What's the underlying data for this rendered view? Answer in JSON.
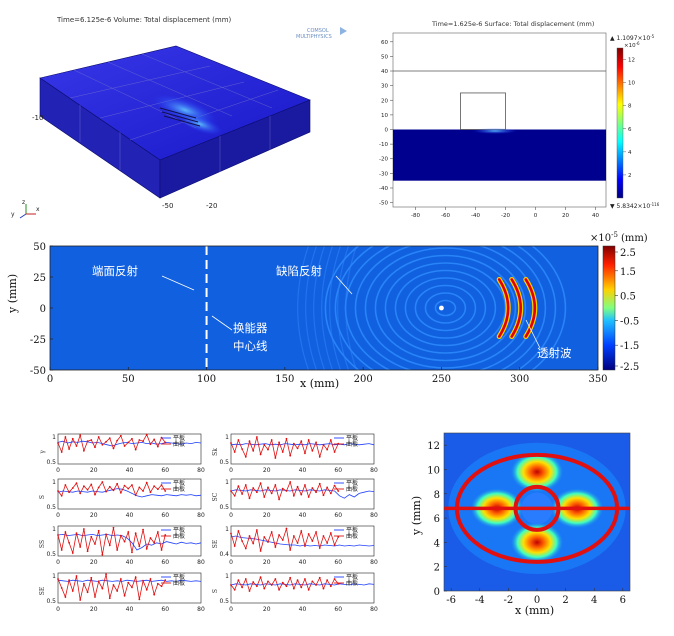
{
  "panel_a": {
    "title": "Time=6.125e-6   Volume: Total displacement (mm)",
    "logo_text_1": "COMSOL",
    "logo_text_2": "MULTIPHYSICS",
    "ticks": [
      "-10",
      "-50",
      "-20"
    ],
    "axes": [
      "y",
      "x",
      "z"
    ]
  },
  "chart_data": [
    {
      "type": "heatmap",
      "title": "Time=1.625e-6   Surface: Total displacement (mm)",
      "yticks": [
        "60",
        "50",
        "40",
        "30",
        "20",
        "10",
        "0",
        "-10",
        "-20",
        "-30",
        "-40",
        "-50"
      ],
      "xticks": [
        "-80",
        "-60",
        "-40",
        "-20",
        "0",
        "20",
        "40"
      ],
      "xlim": [
        -95,
        47
      ],
      "ylim": [
        -53,
        66
      ],
      "colorbar_ticks": [
        "12",
        "10",
        "8",
        "6",
        "4",
        "2"
      ],
      "colorbar_max": "▲ 1.1097×10",
      "colorbar_max_exp": "-5",
      "colorbar_unit": "×10",
      "colorbar_unit_exp": "-6",
      "colorbar_min": "▼ 5.8342×10",
      "colorbar_min_exp": "-116",
      "colorbar_range": [
        0,
        12
      ]
    },
    {
      "type": "heatmap",
      "xlabel": "x (mm)",
      "ylabel": "y (mm)",
      "xticks": [
        "0",
        "50",
        "100",
        "150",
        "200",
        "250",
        "300",
        "350"
      ],
      "yticks": [
        "50",
        "25",
        "0",
        "-25",
        "-50"
      ],
      "xlim": [
        0,
        350
      ],
      "ylim": [
        -50,
        50
      ],
      "colorbar_unit": "×10",
      "colorbar_exp": "-5",
      "colorbar_unit_label": "(mm)",
      "colorbar_ticks": [
        "2.5",
        "1.5",
        "0.5",
        "-0.5",
        "-1.5",
        "-2.5"
      ],
      "colorbar_range": [
        -2.5,
        2.5
      ],
      "annotations": [
        "端面反射",
        "缺陷反射",
        "换能器",
        "中心线",
        "透射波"
      ],
      "transducer_centerline_x": 100,
      "defect": {
        "x": 250,
        "y": 0
      }
    },
    {
      "type": "line",
      "series_names": [
        "平板",
        "曲板"
      ],
      "xticks": [
        "0",
        "20",
        "40",
        "60",
        "80"
      ],
      "xlim": [
        0,
        80
      ],
      "subplots": [
        {
          "ylabel": "γ",
          "yticks": [
            "1",
            "0.5"
          ],
          "ylim": [
            0.5,
            1
          ],
          "red": [
            0.85,
            0.7,
            0.95,
            0.75,
            0.92,
            0.8,
            0.98,
            0.72,
            0.88,
            0.9,
            0.78,
            0.95,
            0.82,
            0.87,
            0.93,
            0.76,
            0.89,
            0.97,
            0.8,
            0.86,
            0.92,
            0.74,
            0.9,
            0.88,
            0.99,
            0.83,
            0.91,
            0.79,
            0.94,
            0.86
          ],
          "blue": [
            0.86,
            0.88,
            0.85,
            0.87,
            0.86,
            0.88,
            0.87,
            0.85,
            0.86,
            0.84,
            0.82,
            0.8,
            0.83,
            0.85,
            0.86,
            0.84,
            0.85,
            0.86,
            0.84,
            0.85,
            0.83,
            0.84,
            0.86,
            0.85,
            0.84,
            0.83,
            0.85,
            0.84,
            0.86,
            0.85
          ]
        },
        {
          "ylabel": "S",
          "yticks": [
            "1",
            "0.5"
          ],
          "ylim": [
            0.5,
            1
          ],
          "red": [
            0.8,
            0.72,
            0.9,
            0.78,
            0.85,
            0.93,
            0.76,
            0.88,
            0.82,
            0.91,
            0.74,
            0.86,
            0.95,
            0.79,
            0.87,
            0.81,
            0.92,
            0.77,
            0.89,
            0.84,
            0.9,
            0.73,
            0.86,
            0.8,
            0.94,
            0.78,
            0.88,
            0.83,
            0.9,
            0.8
          ],
          "blue": [
            0.78,
            0.8,
            0.79,
            0.78,
            0.8,
            0.79,
            0.78,
            0.8,
            0.79,
            0.78,
            0.8,
            0.82,
            0.84,
            0.83,
            0.8,
            0.76,
            0.72,
            0.7,
            0.72,
            0.74,
            0.73,
            0.72,
            0.74,
            0.73,
            0.72,
            0.74,
            0.73,
            0.74,
            0.72,
            0.73
          ]
        },
        {
          "ylabel": "SS",
          "yticks": [
            "1",
            "0.5"
          ],
          "ylim": [
            0.5,
            1
          ],
          "red": [
            0.85,
            0.6,
            0.9,
            0.72,
            0.55,
            0.88,
            0.65,
            0.95,
            0.58,
            0.82,
            0.7,
            0.92,
            0.52,
            0.86,
            0.68,
            0.97,
            0.6,
            0.84,
            0.74,
            0.9,
            0.56,
            0.88,
            0.66,
            0.94,
            0.62,
            0.8,
            0.72,
            0.9,
            0.6,
            0.85
          ],
          "blue": [
            0.85,
            0.86,
            0.84,
            0.85,
            0.86,
            0.84,
            0.85,
            0.86,
            0.84,
            0.85,
            0.86,
            0.84,
            0.85,
            0.84,
            0.8,
            0.72,
            0.6,
            0.64,
            0.7,
            0.68,
            0.72,
            0.7,
            0.74,
            0.72,
            0.7,
            0.73,
            0.71,
            0.72,
            0.7,
            0.72
          ]
        },
        {
          "ylabel": "SE",
          "yticks": [
            "1",
            "0.5"
          ],
          "ylim": [
            0.5,
            1
          ],
          "red": [
            0.9,
            0.75,
            0.6,
            0.88,
            0.7,
            0.95,
            0.55,
            0.82,
            0.68,
            0.92,
            0.6,
            0.86,
            0.74,
            0.98,
            0.58,
            0.8,
            0.7,
            0.9,
            0.62,
            0.84,
            0.76,
            0.93,
            0.56,
            0.87,
            0.72,
            0.9,
            0.64,
            0.82,
            0.78,
            0.88
          ],
          "blue": [
            0.88,
            0.87,
            0.86,
            0.88,
            0.87,
            0.86,
            0.88,
            0.87,
            0.86,
            0.88,
            0.87,
            0.86,
            0.87,
            0.86,
            0.88,
            0.87,
            0.86,
            0.87,
            0.88,
            0.86,
            0.87,
            0.88,
            0.86,
            0.87,
            0.86,
            0.88,
            0.87,
            0.86,
            0.87,
            0.86
          ]
        },
        {
          "ylabel": "Sk",
          "yticks": [
            "1",
            "0.5"
          ],
          "ylim": [
            0.5,
            1
          ],
          "red": [
            0.85,
            0.7,
            0.9,
            0.75,
            0.62,
            0.88,
            0.72,
            0.95,
            0.66,
            0.82,
            0.74,
            0.9,
            0.6,
            0.86,
            0.7,
            0.92,
            0.64,
            0.84,
            0.76,
            0.88,
            0.68,
            0.9,
            0.72,
            0.86,
            0.62,
            0.82,
            0.74,
            0.9,
            0.7,
            0.84
          ],
          "blue": [
            0.82,
            0.83,
            0.82,
            0.84,
            0.83,
            0.82,
            0.83,
            0.84,
            0.82,
            0.83,
            0.82,
            0.84,
            0.83,
            0.82,
            0.83,
            0.82,
            0.84,
            0.83,
            0.82,
            0.83,
            0.84,
            0.82,
            0.83,
            0.82,
            0.84,
            0.83,
            0.82,
            0.83,
            0.84,
            0.82
          ]
        },
        {
          "ylabel": "SC",
          "yticks": [
            "1",
            "0.5"
          ],
          "ylim": [
            0.5,
            1
          ],
          "red": [
            0.8,
            0.72,
            0.88,
            0.75,
            0.9,
            0.68,
            0.85,
            0.78,
            0.93,
            0.7,
            0.86,
            0.76,
            0.9,
            0.66,
            0.84,
            0.8,
            0.95,
            0.72,
            0.87,
            0.74,
            0.9,
            0.7,
            0.85,
            0.78,
            0.92,
            0.73,
            0.86,
            0.76,
            0.89,
            0.8
          ],
          "blue": [
            0.8,
            0.82,
            0.81,
            0.8,
            0.82,
            0.81,
            0.8,
            0.82,
            0.81,
            0.8,
            0.82,
            0.81,
            0.8,
            0.82,
            0.81,
            0.8,
            0.82,
            0.81,
            0.8,
            0.82,
            0.81,
            0.8,
            0.72,
            0.68,
            0.74,
            0.7,
            0.76,
            0.78,
            0.8,
            0.79
          ]
        },
        {
          "ylabel": "SE",
          "yticks": [
            "1",
            "0.4"
          ],
          "ylim": [
            0.4,
            1
          ],
          "red": [
            0.85,
            0.6,
            0.9,
            0.7,
            0.55,
            0.8,
            0.65,
            0.92,
            0.5,
            0.78,
            0.68,
            0.88,
            0.58,
            0.82,
            0.72,
            0.95,
            0.52,
            0.8,
            0.66,
            0.9,
            0.6,
            0.84,
            0.7,
            0.88,
            0.56,
            0.8,
            0.66,
            0.86,
            0.62,
            0.78
          ],
          "blue": [
            0.78,
            0.8,
            0.77,
            0.76,
            0.75,
            0.74,
            0.72,
            0.7,
            0.68,
            0.66,
            0.64,
            0.63,
            0.62,
            0.62,
            0.6,
            0.62,
            0.6,
            0.61,
            0.6,
            0.62,
            0.61,
            0.6,
            0.62,
            0.6,
            0.61,
            0.6,
            0.62,
            0.61,
            0.6,
            0.61
          ]
        },
        {
          "ylabel": "S",
          "yticks": [
            "1",
            "0.5"
          ],
          "ylim": [
            0.5,
            1
          ],
          "red": [
            0.8,
            0.72,
            0.88,
            0.76,
            0.9,
            0.7,
            0.85,
            0.78,
            0.93,
            0.74,
            0.86,
            0.8,
            0.9,
            0.72,
            0.84,
            0.78,
            0.92,
            0.74,
            0.88,
            0.76,
            0.9,
            0.72,
            0.86,
            0.8,
            0.92,
            0.74,
            0.88,
            0.78,
            0.9,
            0.82
          ],
          "blue": [
            0.8,
            0.82,
            0.81,
            0.8,
            0.82,
            0.81,
            0.8,
            0.82,
            0.81,
            0.8,
            0.82,
            0.81,
            0.8,
            0.82,
            0.81,
            0.8,
            0.82,
            0.81,
            0.8,
            0.82,
            0.81,
            0.8,
            0.82,
            0.81,
            0.8,
            0.82,
            0.81,
            0.8,
            0.82,
            0.81
          ]
        }
      ]
    },
    {
      "type": "heatmap",
      "xlabel": "x (mm)",
      "ylabel": "y (mm)",
      "xticks": [
        "-6",
        "-4",
        "-2",
        "0",
        "2",
        "4",
        "6"
      ],
      "yticks": [
        "12",
        "10",
        "8",
        "6",
        "4",
        "2",
        "0"
      ],
      "xlim": [
        -6.5,
        6.5
      ],
      "ylim": [
        0,
        13
      ],
      "outer_ellipse": {
        "cx": 0,
        "cy": 6.8,
        "rx": 5.6,
        "ry": 4.4
      },
      "inner_circle": {
        "cx": 0,
        "cy": 6.8,
        "r": 1.5
      },
      "horizontal_line_y": 6.8,
      "lobes": [
        {
          "x": 0,
          "y": 9.8
        },
        {
          "x": 0,
          "y": 4.0
        },
        {
          "x": -2.8,
          "y": 6.8
        },
        {
          "x": 2.8,
          "y": 6.8
        }
      ]
    }
  ]
}
